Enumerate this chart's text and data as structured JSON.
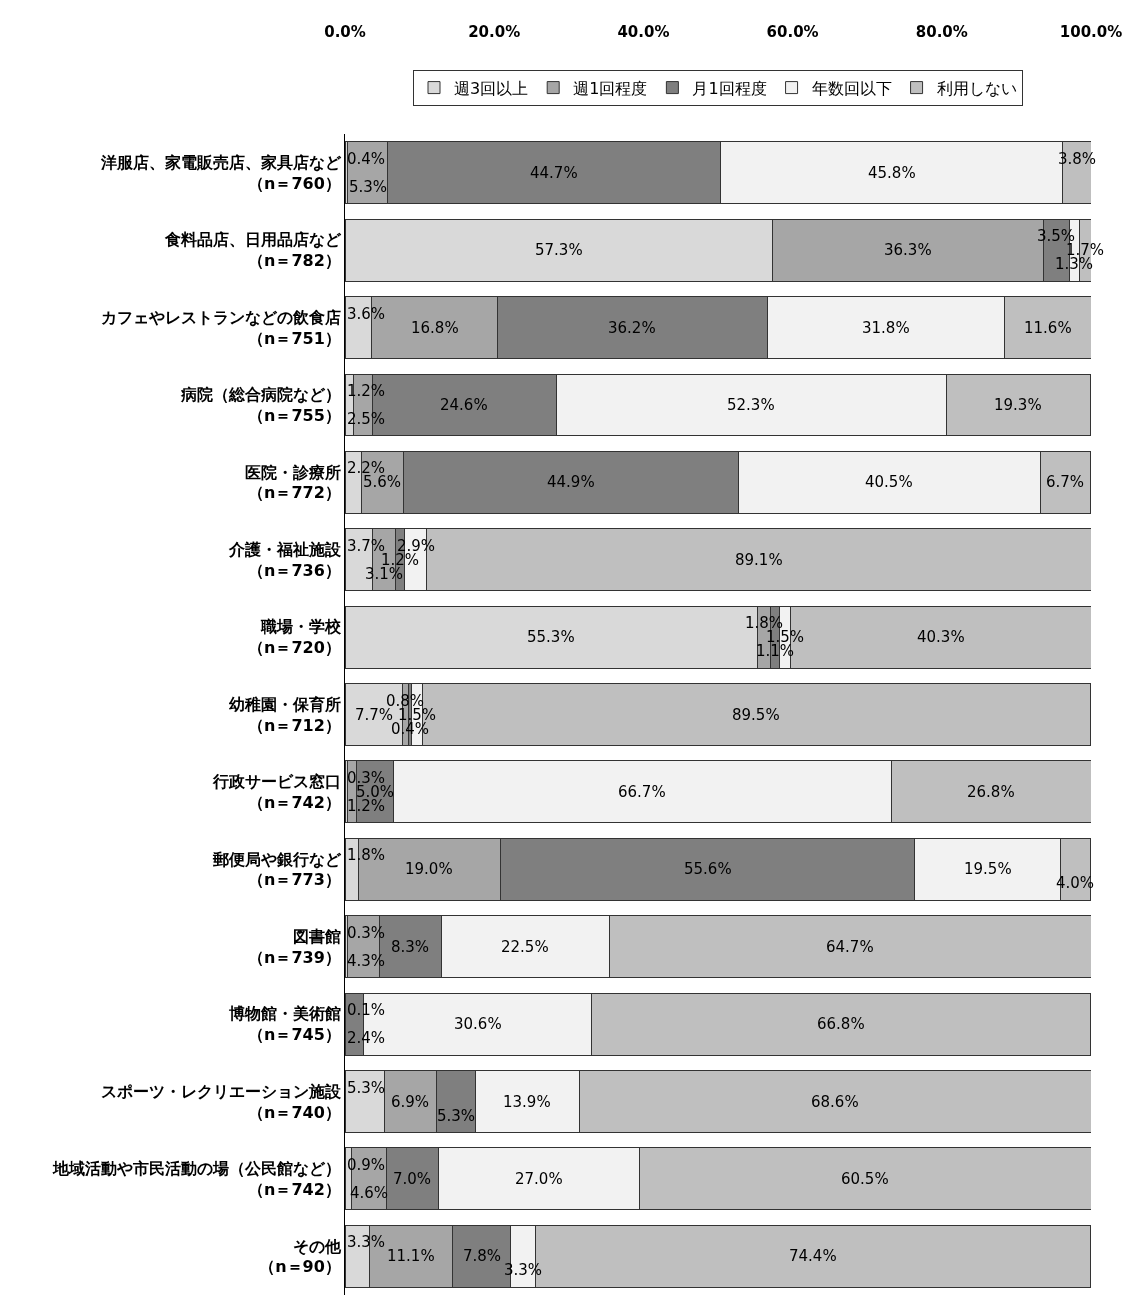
{
  "chart_data": {
    "type": "bar",
    "orientation": "horizontal",
    "stacked": true,
    "legend": "top",
    "categories": [
      "洋服店、家電販売店、家具店など（n＝760）",
      "食料品店、日用品店など（n＝782）",
      "カフェやレストランなどの飲食店（n＝751）",
      "病院（総合病院など）（n＝755）",
      "医院・診療所（n＝772）",
      "介護・福祉施設（n＝736）",
      "職場・学校（n＝720）",
      "幼稚園・保育所（n＝712）",
      "行政サービス窓口（n＝742）",
      "郵便局や銀行など（n＝773）",
      "図書館（n＝739）",
      "博物館・美術館（n＝745）",
      "スポーツ・レクリエーション施設（n＝740）",
      "地域活動や市民活動の場（公民館など）（n＝742）",
      "その他（n＝90）"
    ],
    "xlim": [
      0,
      100
    ],
    "xticks": [
      {
        "value": 0,
        "label": "0.0%"
      },
      {
        "value": 20,
        "label": "20.0%"
      },
      {
        "value": 40,
        "label": "40.0%"
      },
      {
        "value": 60,
        "label": "60.0%"
      },
      {
        "value": 80,
        "label": "80.0%"
      },
      {
        "value": 100,
        "label": "100.0%"
      }
    ],
    "series": [
      {
        "name": "週3回以上",
        "color": "#d9d9d9",
        "values": [
          0.4,
          57.3,
          3.6,
          1.2,
          2.2,
          3.7,
          55.3,
          7.7,
          0.3,
          1.8,
          0.3,
          null,
          5.3,
          0.9,
          3.3
        ],
        "value_labels": [
          "0.4%",
          "57.3%",
          "3.6%",
          "1.2%",
          "2.2%",
          "3.7%",
          "55.3%",
          "7.7%",
          "0.3%",
          "1.8%",
          "0.3%",
          null,
          "5.3%",
          "0.9%",
          "3.3%"
        ]
      },
      {
        "name": "週1回程度",
        "color": "#a6a6a6",
        "values": [
          5.3,
          36.3,
          16.8,
          2.5,
          5.6,
          3.1,
          1.8,
          0.8,
          1.2,
          19.0,
          4.3,
          0.1,
          6.9,
          4.6,
          11.1
        ],
        "value_labels": [
          "5.3%",
          "36.3%",
          "16.8%",
          "2.5%",
          "5.6%",
          "3.1%",
          "1.8%",
          "0.8%",
          "1.2%",
          "19.0%",
          "4.3%",
          "0.1%",
          "6.9%",
          "4.6%",
          "11.1%"
        ]
      },
      {
        "name": "月1回程度",
        "color": "#7f7f7f",
        "values": [
          44.7,
          3.5,
          36.2,
          24.6,
          44.9,
          1.2,
          1.1,
          0.4,
          5.0,
          55.6,
          8.3,
          2.4,
          5.3,
          7.0,
          7.8
        ],
        "value_labels": [
          "44.7%",
          "3.5%",
          "36.2%",
          "24.6%",
          "44.9%",
          "1.2%",
          "1.1%",
          "0.4%",
          "5.0%",
          "55.6%",
          "8.3%",
          "2.4%",
          "5.3%",
          "7.0%",
          "7.8%"
        ]
      },
      {
        "name": "年数回以下",
        "color": "#f2f2f2",
        "values": [
          45.8,
          1.3,
          31.8,
          52.3,
          40.5,
          2.9,
          1.5,
          1.5,
          66.7,
          19.5,
          22.5,
          30.6,
          13.9,
          27.0,
          3.3
        ],
        "value_labels": [
          "45.8%",
          "1.3%",
          "31.8%",
          "52.3%",
          "40.5%",
          "2.9%",
          "1.5%",
          "1.5%",
          "66.7%",
          "19.5%",
          "22.5%",
          "30.6%",
          "13.9%",
          "27.0%",
          "3.3%"
        ]
      },
      {
        "name": "利用しない",
        "color": "#bfbfbf",
        "values": [
          3.8,
          1.7,
          11.6,
          19.3,
          6.7,
          89.1,
          40.3,
          89.5,
          26.8,
          4.0,
          64.7,
          66.8,
          68.6,
          60.5,
          74.4
        ],
        "value_labels": [
          "3.8%",
          "1.7%",
          "11.6%",
          "19.3%",
          "6.7%",
          "89.1%",
          "40.3%",
          "89.5%",
          "26.8%",
          "4.0%",
          "64.7%",
          "66.8%",
          "68.6%",
          "60.5%",
          "74.4%"
        ]
      }
    ]
  }
}
